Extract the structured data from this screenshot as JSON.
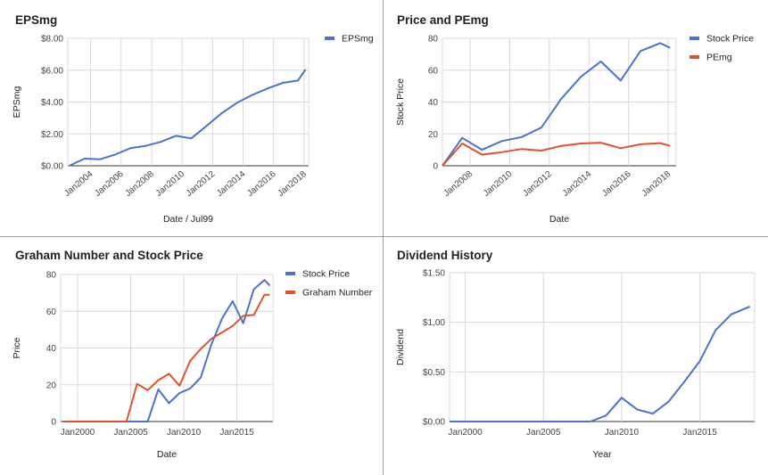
{
  "chart_data": [
    {
      "type": "line",
      "title": "EPSmg",
      "xlabel": "Date / Jul99",
      "ylabel": "EPSmg",
      "x_tick_labels": [
        "Jan2004",
        "Jan2006",
        "Jan2008",
        "Jan2010",
        "Jan2012",
        "Jan2014",
        "Jan2016",
        "Jan2018"
      ],
      "x_tick_years": [
        2004,
        2006,
        2008,
        2010,
        2012,
        2014,
        2016,
        2018
      ],
      "y_tick_labels": [
        "$0.00",
        "$2.00",
        "$4.00",
        "$6.00",
        "$8.00"
      ],
      "y_tick_values": [
        0,
        2,
        4,
        6,
        8
      ],
      "xlim": [
        2002.5,
        2018.3
      ],
      "ylim": [
        0,
        8
      ],
      "legend": "top-right",
      "series": [
        {
          "name": "EPSmg",
          "color": "#4a72cf",
          "x": [
            2002.6,
            2003.6,
            2004.6,
            2005.6,
            2006.6,
            2007.6,
            2008.6,
            2009.6,
            2010.6,
            2011.6,
            2012.6,
            2013.6,
            2014.6,
            2015.6,
            2016.6,
            2017.6,
            2018.1
          ],
          "values": [
            0.0,
            0.45,
            0.4,
            0.7,
            1.1,
            1.25,
            1.5,
            1.88,
            1.72,
            2.5,
            3.3,
            3.95,
            4.45,
            4.85,
            5.2,
            5.35,
            6.05
          ]
        }
      ]
    },
    {
      "type": "line",
      "title": "Price and PEmg",
      "xlabel": "Date",
      "ylabel": "Stock Price",
      "x_tick_labels": [
        "Jan2008",
        "Jan2010",
        "Jan2012",
        "Jan2014",
        "Jan2016",
        "Jan2018"
      ],
      "x_tick_years": [
        2008,
        2010,
        2012,
        2014,
        2016,
        2018
      ],
      "y_tick_labels": [
        "0",
        "20",
        "40",
        "60",
        "80"
      ],
      "y_tick_values": [
        0,
        20,
        40,
        60,
        80
      ],
      "xlim": [
        2006.6,
        2018.4
      ],
      "ylim": [
        0,
        80
      ],
      "legend": "top-right",
      "series": [
        {
          "name": "Stock Price",
          "color": "#4a72cf",
          "x": [
            2006.6,
            2007.6,
            2008.6,
            2009.6,
            2010.6,
            2011.6,
            2012.6,
            2013.6,
            2014.6,
            2015.6,
            2016.6,
            2017.6,
            2018.1
          ],
          "values": [
            0,
            17.5,
            10,
            15.5,
            18,
            24,
            42,
            56,
            65.5,
            53.5,
            72,
            77,
            74
          ]
        },
        {
          "name": "PEmg",
          "color": "#e0522e",
          "x": [
            2006.6,
            2007.6,
            2008.6,
            2009.6,
            2010.6,
            2011.6,
            2012.6,
            2013.6,
            2014.6,
            2015.6,
            2016.6,
            2017.6,
            2018.1
          ],
          "values": [
            0,
            14,
            7,
            8.5,
            10.5,
            9.5,
            12.5,
            14,
            14.5,
            11,
            13.5,
            14.2,
            12.5
          ]
        }
      ]
    },
    {
      "type": "line",
      "title": "Graham Number and Stock Price",
      "xlabel": "Date",
      "ylabel": "Price",
      "x_tick_labels": [
        "Jan2000",
        "Jan2005",
        "Jan2010",
        "Jan2015"
      ],
      "x_tick_years": [
        2000,
        2005,
        2010,
        2015
      ],
      "y_tick_labels": [
        "0",
        "20",
        "40",
        "60",
        "80"
      ],
      "y_tick_values": [
        0,
        20,
        40,
        60,
        80
      ],
      "xlim": [
        1998.4,
        2018.4
      ],
      "ylim": [
        0,
        80
      ],
      "legend": "top-right",
      "series": [
        {
          "name": "Stock Price",
          "color": "#4a72cf",
          "x": [
            1998.6,
            1999.6,
            2000.6,
            2001.6,
            2002.6,
            2003.6,
            2004.6,
            2005.6,
            2006.6,
            2007.6,
            2008.6,
            2009.6,
            2010.6,
            2011.6,
            2012.6,
            2013.6,
            2014.6,
            2015.6,
            2016.6,
            2017.6,
            2018.1
          ],
          "values": [
            0,
            0,
            0,
            0,
            0,
            0,
            0,
            0,
            0,
            17.5,
            10,
            15.5,
            18,
            24,
            42,
            56,
            65.5,
            53.5,
            72,
            77,
            74
          ]
        },
        {
          "name": "Graham Number",
          "color": "#e0522e",
          "x": [
            1998.6,
            1999.6,
            2000.6,
            2001.6,
            2002.6,
            2003.6,
            2004.6,
            2005.6,
            2006.6,
            2007.6,
            2008.6,
            2009.6,
            2010.6,
            2011.6,
            2012.6,
            2013.6,
            2014.6,
            2015.6,
            2016.6,
            2017.6,
            2018.1
          ],
          "values": [
            0,
            0,
            0,
            0,
            0,
            0,
            0,
            20.5,
            17,
            22.5,
            26,
            19.5,
            33,
            39.5,
            45,
            48.5,
            52,
            57.5,
            58,
            69,
            69
          ]
        }
      ]
    },
    {
      "type": "line",
      "title": "Dividend History",
      "xlabel": "Year",
      "ylabel": "Dividend",
      "x_tick_labels": [
        "Jan2000",
        "Jan2005",
        "Jan2010",
        "Jan2015"
      ],
      "x_tick_years": [
        2000,
        2005,
        2010,
        2015
      ],
      "y_tick_labels": [
        "$0.00",
        "$0.50",
        "$1.00",
        "$1.50"
      ],
      "y_tick_values": [
        0,
        0.5,
        1.0,
        1.5
      ],
      "xlim": [
        1999.0,
        2018.5
      ],
      "ylim": [
        0,
        1.5
      ],
      "legend": "none",
      "series": [
        {
          "name": "",
          "color": "#4a72cf",
          "x": [
            1999.0,
            2000,
            2001,
            2002,
            2003,
            2004,
            2005,
            2006,
            2007,
            2008,
            2009,
            2010,
            2011,
            2012,
            2013,
            2014,
            2015,
            2016,
            2017,
            2018.2
          ],
          "values": [
            0,
            0,
            0,
            0,
            0,
            0,
            0,
            0,
            0,
            0,
            0.06,
            0.24,
            0.12,
            0.08,
            0.2,
            0.4,
            0.61,
            0.92,
            1.08,
            1.16
          ]
        }
      ]
    }
  ]
}
